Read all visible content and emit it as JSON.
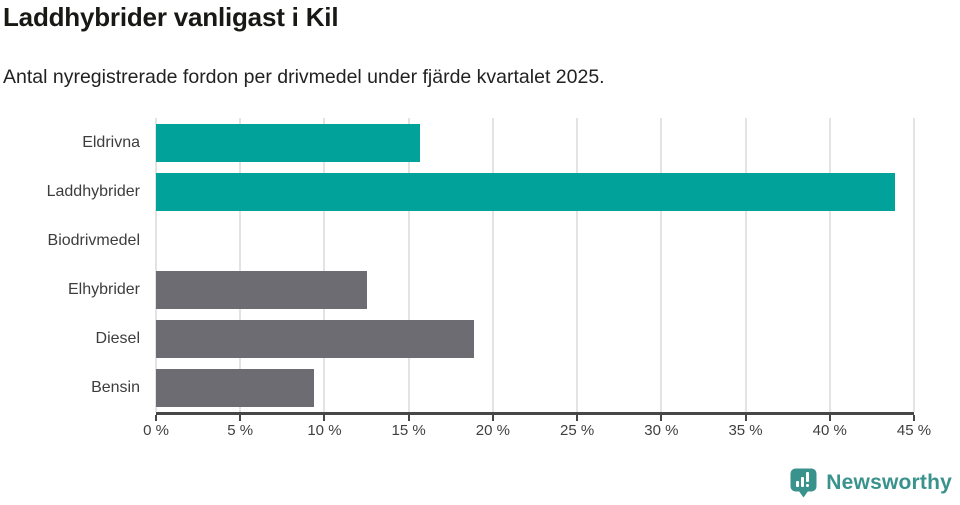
{
  "header": {
    "title": "Laddhybrider vanligast i Kil",
    "subtitle": "Antal nyregistrerade fordon per drivmedel under fjärde kvartalet 2025."
  },
  "chart_data": {
    "type": "bar",
    "orientation": "horizontal",
    "title": "Laddhybrider vanligast i Kil",
    "subtitle": "Antal nyregistrerade fordon per drivmedel under fjärde kvartalet 2025.",
    "categories": [
      "Eldrivna",
      "Laddhybrider",
      "Biodrivmedel",
      "Elhybrider",
      "Diesel",
      "Bensin"
    ],
    "values": [
      15.7,
      43.9,
      0,
      12.5,
      18.9,
      9.4
    ],
    "unit": "%",
    "bar_colors": [
      "#00a29a",
      "#00a29a",
      "#00a29a",
      "#6c6c72",
      "#6c6c72",
      "#6c6c72"
    ],
    "xlabel": "",
    "ylabel": "",
    "xlim": [
      0,
      45
    ],
    "x_ticks": [
      0,
      5,
      10,
      15,
      20,
      25,
      30,
      35,
      40,
      45
    ],
    "x_tick_labels": [
      "0 %",
      "5 %",
      "10 %",
      "15 %",
      "20 %",
      "25 %",
      "30 %",
      "35 %",
      "40 %",
      "45 %"
    ],
    "grid": "vertical-only",
    "legend": "none"
  },
  "style": {
    "teal": "#00a29a",
    "gray": "#6c6c72",
    "axis_color": "#474747",
    "grid_color": "#e3e3e3",
    "label_color": "#3d3d3d"
  },
  "branding": {
    "name": "Newsworthy",
    "color": "#3a928c",
    "icon": "speech-bubble-bar-chart"
  }
}
